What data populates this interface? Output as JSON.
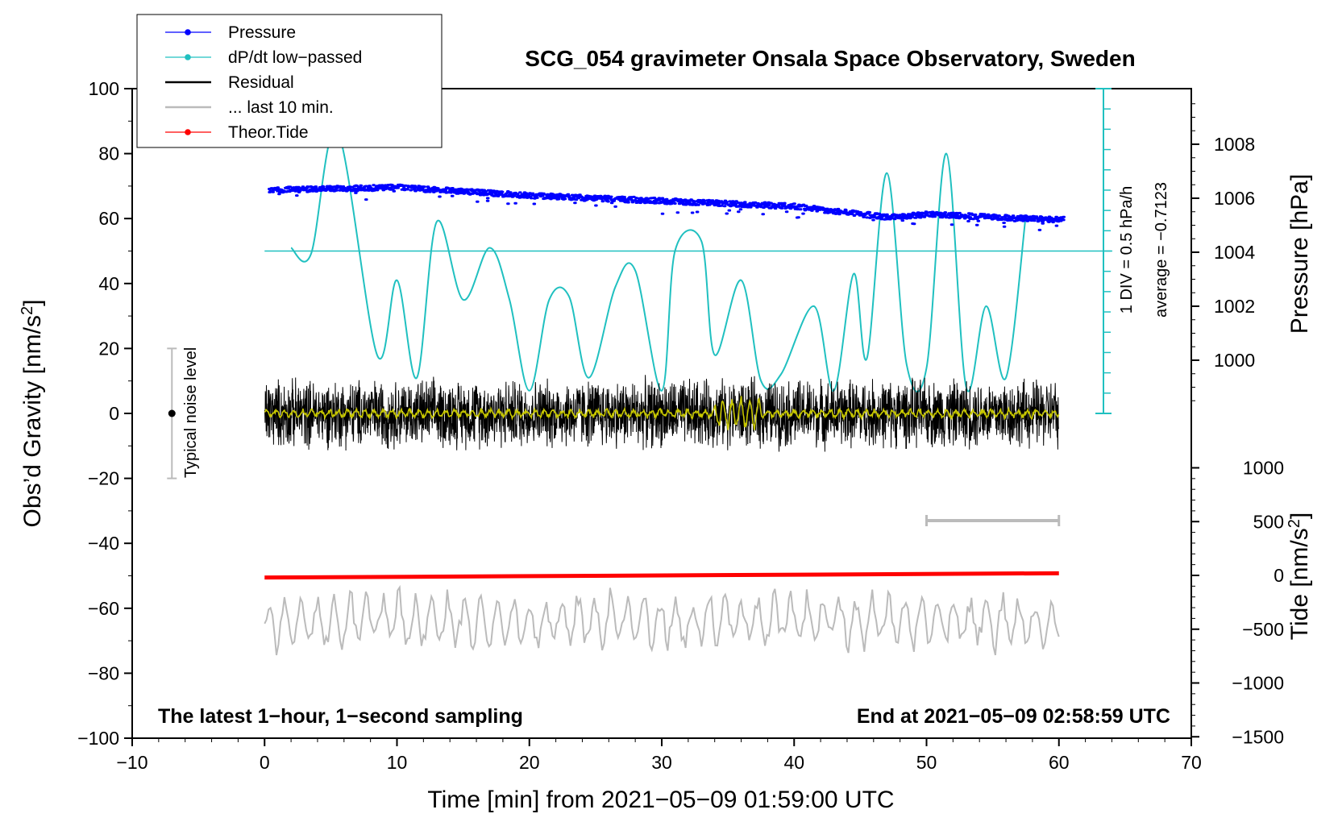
{
  "chart_data": {
    "type": "line",
    "title": "SCG_054 gravimeter Onsala Space Observatory, Sweden",
    "xlabel": "Time [min] from 2021−05−09 01:59:00 UTC",
    "ylabel_left": "Obs’d Gravity [nm/s",
    "ylabel_left_sup": "2",
    "ylabel_left_end": "]",
    "ylabel_right_top": "Pressure [hPa]",
    "ylabel_right_bottom": "Tide [nm/s",
    "ylabel_right_bottom_sup": "2",
    "ylabel_right_bottom_end": "]",
    "xlim": [
      -10,
      70
    ],
    "ylim_left": [
      -100,
      100
    ],
    "x_ticks": [
      "−10",
      "0",
      "10",
      "20",
      "30",
      "40",
      "50",
      "60",
      "70"
    ],
    "y_ticks_left": [
      "100",
      "80",
      "60",
      "40",
      "20",
      "0",
      "−20",
      "−40",
      "−60",
      "−80",
      "−100"
    ],
    "pressure_ticks": [
      "1008",
      "1006",
      "1004",
      "1002",
      "1000"
    ],
    "tide_ticks": [
      "1000",
      "500",
      "0",
      "−500",
      "−1000",
      "−1500"
    ],
    "dpdt_axis_label_1": "1 DIV = 0.5 hPa/h",
    "dpdt_axis_label_2": "average = −0.7123",
    "noise_label": "Typical noise level",
    "note_left": "The latest 1−hour, 1−second sampling",
    "note_right": "End at 2021−05−09 02:58:59 UTC",
    "legend": [
      {
        "name": "Pressure",
        "color": "#0000ff",
        "marker": true
      },
      {
        "name": "dP/dt low−passed",
        "color": "#20c0c0",
        "marker": true
      },
      {
        "name": "Residual",
        "color": "#000000",
        "marker": false
      },
      {
        "name": "... last 10 min.",
        "color": "#bbbbbb",
        "marker": false
      },
      {
        "name": "Theor.Tide",
        "color": "#ff0000",
        "marker": true
      }
    ],
    "series": [
      {
        "name": "Pressure",
        "unit": "hPa",
        "x": [
          0,
          10,
          20,
          30,
          40,
          47,
          50,
          60
        ],
        "values": [
          1006.3,
          1006.4,
          1006.1,
          1005.9,
          1005.7,
          1005.3,
          1005.4,
          1005.2
        ]
      },
      {
        "name": "dP/dt low-passed",
        "unit": "gravity-axis equivalent",
        "x": [
          2,
          3.5,
          5.5,
          8.5,
          10,
          11.5,
          13,
          15,
          17,
          18.5,
          20,
          21.5,
          23,
          24.5,
          26.5,
          28,
          30,
          31,
          33,
          34,
          36,
          37.5,
          39,
          41.5,
          43,
          44.5,
          45.5,
          47,
          48.5,
          50,
          51.5,
          53,
          54.5,
          56,
          57.5
        ],
        "values": [
          51,
          49,
          87,
          18,
          41,
          11,
          59,
          35,
          51,
          35,
          7,
          35,
          36,
          11,
          39,
          44,
          7,
          50,
          53,
          18,
          41,
          10,
          12,
          33,
          7,
          43,
          17,
          74,
          15,
          14,
          80,
          8,
          33,
          11,
          61
        ]
      },
      {
        "name": "dP/dt zero line",
        "values": [
          50
        ]
      },
      {
        "name": "Residual",
        "x_range": [
          0,
          60
        ],
        "amplitude": 12,
        "center": 0
      },
      {
        "name": "Residual smoothed",
        "color": "#c8c800",
        "x_range": [
          0,
          60
        ],
        "center": 0
      },
      {
        "name": "... last 10 min.",
        "x_range": [
          0,
          60
        ],
        "center": -64,
        "amplitude": 8
      },
      {
        "name": "Theor.Tide",
        "unit": "nm/s^2",
        "x": [
          0,
          60
        ],
        "values": [
          -20,
          20
        ]
      }
    ],
    "noise_bar": {
      "x": -7,
      "y_from": -20,
      "y_to": 20
    },
    "ten_min_bar": {
      "x_from": 50,
      "x_to": 60,
      "y": -33
    }
  }
}
